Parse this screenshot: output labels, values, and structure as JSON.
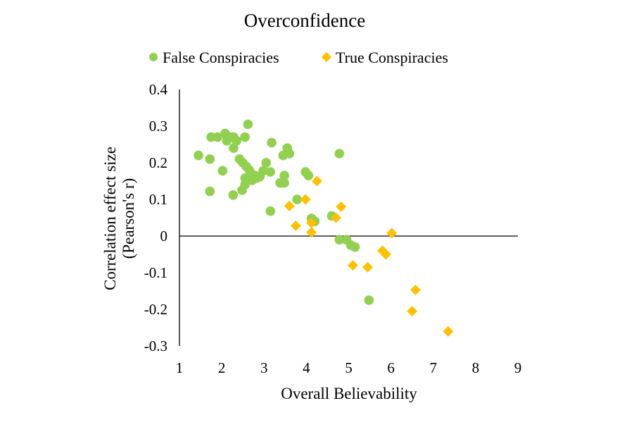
{
  "chart_data": {
    "type": "scatter",
    "title": "Overconfidence",
    "xlabel": "Overall Believability",
    "ylabel_line1": "Correlation effect size",
    "ylabel_line2": "(Pearson's r)",
    "xlim": [
      1,
      9
    ],
    "ylim": [
      -0.3,
      0.4
    ],
    "xticks": [
      1,
      2,
      3,
      4,
      5,
      6,
      7,
      8,
      9
    ],
    "yticks": [
      0.4,
      0.3,
      0.2,
      0.1,
      0,
      -0.1,
      -0.2,
      -0.3
    ],
    "ytick_labels": [
      "0.4",
      "0.3",
      "0.2",
      "0.1",
      "0",
      "-0.1",
      "-0.2",
      "-0.3"
    ],
    "xtick_labels": [
      "1",
      "2",
      "3",
      "4",
      "5",
      "6",
      "7",
      "8",
      "9"
    ],
    "legend_position": "top",
    "colors": {
      "false_series": "#92D050",
      "true_series": "#FFC000",
      "axis": "#000000"
    },
    "series": [
      {
        "name": "False Conspiracies",
        "marker": "circle",
        "points": [
          [
            1.45,
            0.22
          ],
          [
            1.72,
            0.21
          ],
          [
            1.75,
            0.27
          ],
          [
            1.9,
            0.27
          ],
          [
            2.08,
            0.28
          ],
          [
            2.12,
            0.26
          ],
          [
            2.2,
            0.27
          ],
          [
            2.28,
            0.27
          ],
          [
            2.35,
            0.26
          ],
          [
            2.28,
            0.24
          ],
          [
            2.55,
            0.27
          ],
          [
            2.62,
            0.305
          ],
          [
            2.02,
            0.178
          ],
          [
            1.72,
            0.122
          ],
          [
            2.27,
            0.112
          ],
          [
            2.42,
            0.21
          ],
          [
            2.5,
            0.2
          ],
          [
            2.58,
            0.19
          ],
          [
            2.65,
            0.18
          ],
          [
            2.7,
            0.17
          ],
          [
            2.78,
            0.165
          ],
          [
            2.55,
            0.158
          ],
          [
            2.62,
            0.152
          ],
          [
            2.72,
            0.152
          ],
          [
            2.82,
            0.158
          ],
          [
            2.9,
            0.162
          ],
          [
            2.98,
            0.178
          ],
          [
            3.05,
            0.2
          ],
          [
            3.15,
            0.175
          ],
          [
            3.18,
            0.255
          ],
          [
            3.45,
            0.22
          ],
          [
            3.55,
            0.24
          ],
          [
            3.6,
            0.225
          ],
          [
            3.48,
            0.165
          ],
          [
            3.38,
            0.145
          ],
          [
            3.48,
            0.145
          ],
          [
            2.48,
            0.125
          ],
          [
            2.55,
            0.14
          ],
          [
            3.15,
            0.068
          ],
          [
            3.78,
            0.1
          ],
          [
            3.98,
            0.175
          ],
          [
            4.05,
            0.165
          ],
          [
            4.12,
            0.048
          ],
          [
            4.2,
            0.04
          ],
          [
            4.6,
            0.055
          ],
          [
            4.78,
            0.225
          ],
          [
            4.78,
            -0.01
          ],
          [
            4.95,
            -0.01
          ],
          [
            5.05,
            -0.025
          ],
          [
            5.15,
            -0.03
          ],
          [
            5.48,
            -0.175
          ]
        ]
      },
      {
        "name": "True Conspiracies",
        "marker": "diamond",
        "points": [
          [
            3.6,
            0.082
          ],
          [
            3.75,
            0.028
          ],
          [
            3.98,
            0.1
          ],
          [
            4.12,
            0.036
          ],
          [
            4.12,
            0.01
          ],
          [
            4.25,
            0.15
          ],
          [
            4.7,
            0.05
          ],
          [
            4.82,
            0.08
          ],
          [
            5.1,
            -0.08
          ],
          [
            5.45,
            -0.085
          ],
          [
            5.8,
            -0.04
          ],
          [
            5.88,
            -0.05
          ],
          [
            6.02,
            0.008
          ],
          [
            6.5,
            -0.205
          ],
          [
            6.58,
            -0.147
          ],
          [
            7.35,
            -0.26
          ]
        ]
      }
    ]
  }
}
